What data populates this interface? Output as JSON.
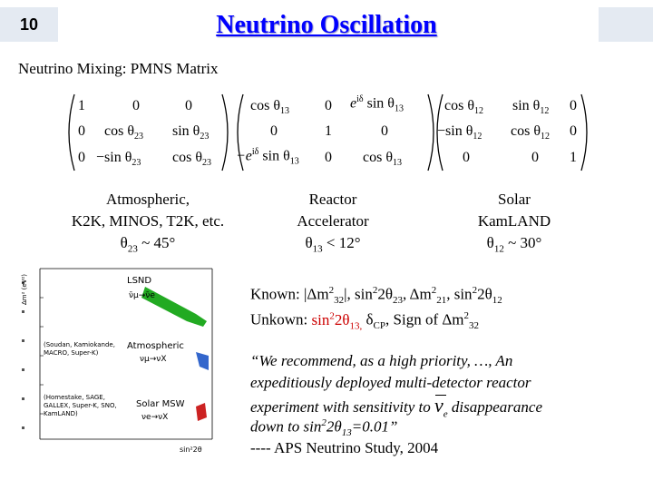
{
  "slide_number": "10",
  "title": "Neutrino Oscillation",
  "subtitle": "Neutrino Mixing: PMNS Matrix",
  "matrix": {
    "m1": {
      "r1c1": "1",
      "r1c2": "0",
      "r1c3": "0",
      "r2c1": "0",
      "r2c2": "cos",
      "r2c2s": "23",
      "r2c3": "sin",
      "r2c3s": "23",
      "r3c1": "0",
      "r3c2": "−sin",
      "r3c2s": "23",
      "r3c3": "cos",
      "r3c3s": "23"
    },
    "m2": {
      "r1c1": "cos",
      "r1c1s": "13",
      "r1c2": "0",
      "r1c3a": "e",
      "r1c3sup": "iδ",
      "r1c3": "sin",
      "r1c3s": "13",
      "r2c1": "0",
      "r2c2": "1",
      "r2c3": "0",
      "r3c1a": "−e",
      "r3c1sup": "iδ",
      "r3c1": "sin",
      "r3c1s": "13",
      "r3c2": "0",
      "r3c3": "cos",
      "r3c3s": "13"
    },
    "m3": {
      "r1c1": "cos",
      "r1c1s": "12",
      "r1c2": "sin",
      "r1c2s": "12",
      "r1c3": "0",
      "r2c1": "−sin",
      "r2c1s": "12",
      "r2c2": "cos",
      "r2c2s": "12",
      "r2c3": "0",
      "r3c1": "0",
      "r3c2": "0",
      "r3c3": "1"
    },
    "theta": "θ"
  },
  "columns": {
    "atm": {
      "line1": "Atmospheric,",
      "line2": "K2K, MINOS, T2K, etc.",
      "theta": "θ",
      "sub": "23",
      "rest": " ~ 45°"
    },
    "reactor": {
      "line1": "Reactor",
      "line2": "Accelerator",
      "theta": "θ",
      "sub": "13",
      "rest": " < 12°"
    },
    "solar": {
      "line1": "Solar",
      "line2": "KamLAND",
      "theta": "θ",
      "sub": "12",
      "rest": " ~ 30°"
    }
  },
  "plot": {
    "ylabel": "Δm² (eV²)",
    "xlabel": "sin²2θ",
    "label_lsnd": "LSND",
    "label_lsnd_arrow": "ν̄μ→ν̄e",
    "label_atm": "Atmospheric",
    "label_atm_arrow": "νμ→νX",
    "label_atm_exp": "(Soudan, Kamiokande, MACRO, Super-K)",
    "label_solar": "Solar MSW",
    "label_solar_arrow": "νe→νX",
    "label_solar_exp": "(Homestake, SAGE, GALLEX, Super-K, SNO, KamLAND)",
    "colors": {
      "lsnd": "#22aa22",
      "atm": "#3366cc",
      "solar": "#cc2222"
    }
  },
  "known": {
    "prefix": "Known: ",
    "t1": "|Δm",
    "t1sup": "2",
    "t1sub": "32",
    "t1end": "|,  sin",
    "t1sup2": "2",
    "t1b": "2θ",
    "t1sub2": "23",
    "t2": ",  Δm",
    "t2sup": "2",
    "t2sub": "21",
    "t2end": ",  sin",
    "t2sup2": "2",
    "t2b": "2θ",
    "t2sub2": "12"
  },
  "unknown": {
    "prefix": "Unkown: ",
    "red": "sin",
    "redsup": "2",
    "redb": "2θ",
    "redsub": "13,",
    "delta": "  δ",
    "deltasub": "CP",
    "rest": ",  Sign of Δm",
    "restsup": "2",
    "restsub": "32"
  },
  "quote": {
    "line1": "“We recommend, as a high priority, …, An",
    "line2": "expeditiously deployed multi-detector reactor",
    "line3a": "experiment with sensitivity to  ",
    "nue": "ν",
    "nuesub": "e",
    "line3b": " disappearance",
    "line4a": "down to sin",
    "line4sup": "2",
    "line4b": "2θ",
    "line4sub": "13",
    "line4c": "=0.01”",
    "attribution": "---- APS Neutrino Study, 2004"
  }
}
